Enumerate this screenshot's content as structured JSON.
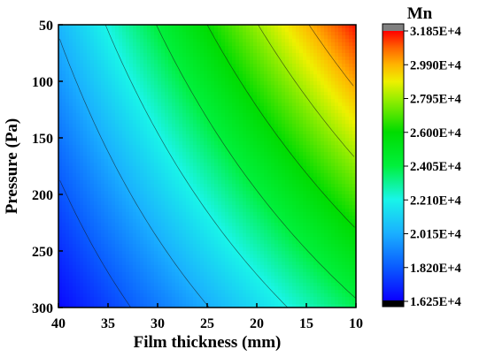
{
  "chart_data": {
    "type": "heatmap",
    "title": "",
    "xlabel": "Film thickness (mm)",
    "ylabel": "Pressure (Pa)",
    "xlim": [
      40,
      10
    ],
    "ylim": [
      300,
      50
    ],
    "x_ticks": [
      "40",
      "35",
      "30",
      "25",
      "20",
      "15",
      "10"
    ],
    "y_ticks": [
      "50",
      "100",
      "150",
      "200",
      "250",
      "300"
    ],
    "colorbar": {
      "label": "Mn",
      "range": [
        16250,
        31850
      ],
      "tick_labels": [
        "3.185E+4",
        "2.990E+4",
        "2.795E+4",
        "2.600E+4",
        "2.405E+4",
        "2.210E+4",
        "2.015E+4",
        "1.820E+4",
        "1.625E+4"
      ],
      "over_color": "#808080",
      "under_color": "#000000"
    },
    "corner_values": [
      {
        "film_thickness": 40,
        "pressure": 50,
        "Mn": 20300
      },
      {
        "film_thickness": 10,
        "pressure": 50,
        "Mn": 31700
      },
      {
        "film_thickness": 40,
        "pressure": 300,
        "Mn": 16400
      },
      {
        "film_thickness": 10,
        "pressure": 300,
        "Mn": 23800
      }
    ]
  }
}
